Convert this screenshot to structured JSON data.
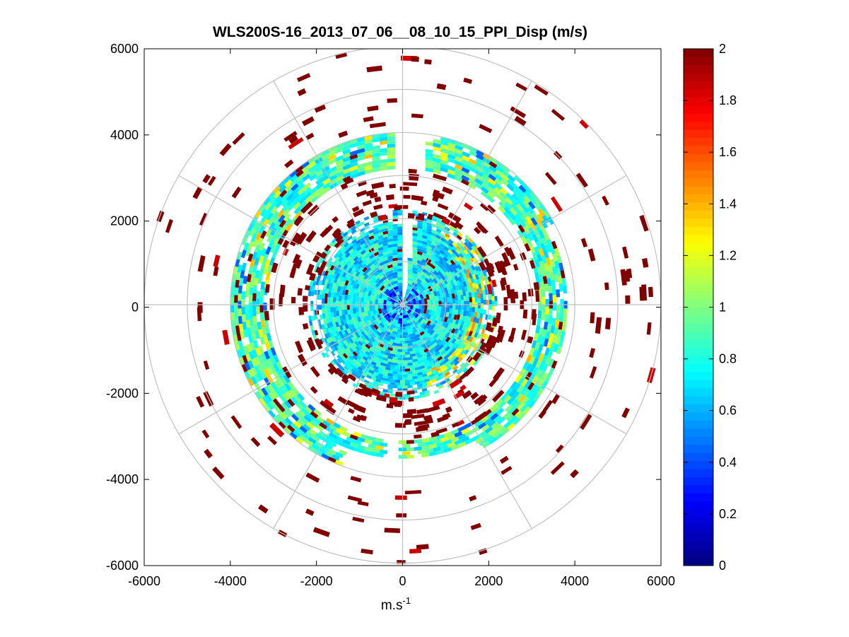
{
  "chart_data": {
    "type": "heatmap",
    "subtype": "polar-ppi",
    "title": "WLS200S-16_2013_07_06__08_10_15_PPI_Disp (m/s)",
    "xlabel": {
      "base": "m.s",
      "sup": "-1"
    },
    "ylabel": "",
    "xlim": [
      -6000,
      6000
    ],
    "ylim": [
      -6000,
      6000
    ],
    "xticks": [
      "-6000",
      "-4000",
      "-2000",
      "0",
      "2000",
      "4000",
      "6000"
    ],
    "yticks": [
      "6000",
      "4000",
      "2000",
      "0",
      "-2000",
      "-4000",
      "-6000"
    ],
    "grid": {
      "rings_m": [
        1000,
        2000,
        3000,
        4000,
        5000,
        6000
      ],
      "spokes_deg": 30,
      "color": "#c0c0c0"
    },
    "colorbar": {
      "colormap": "jet",
      "clim": [
        0,
        2
      ],
      "ticks": [
        "2",
        "1.8",
        "1.6",
        "1.4",
        "1.2",
        "1",
        "0.8",
        "0.6",
        "0.4",
        "0.2",
        "0"
      ]
    },
    "data_regions": [
      {
        "name": "inner dense region",
        "range_m": [
          0,
          2150
        ],
        "value_mean": 0.7,
        "dominant": "cyan"
      },
      {
        "name": "mid dense ring",
        "range_m": [
          3150,
          4000
        ],
        "azimuth_deg": [
          190,
          360
        ],
        "value_mean": 0.85,
        "dominant": "green-cyan"
      },
      {
        "name": "mid dense ring",
        "range_m": [
          3150,
          3950
        ],
        "azimuth_deg": [
          10,
          170
        ],
        "value_mean": 0.8,
        "dominant": "cyan-green"
      },
      {
        "name": "scattered high values",
        "range_m": [
          2000,
          6000
        ],
        "value_mean": 2.0,
        "dominant": "dark red"
      }
    ],
    "colors": {
      "high": "#800000",
      "grid": "#c0c0c0",
      "axes": "#000000"
    }
  }
}
